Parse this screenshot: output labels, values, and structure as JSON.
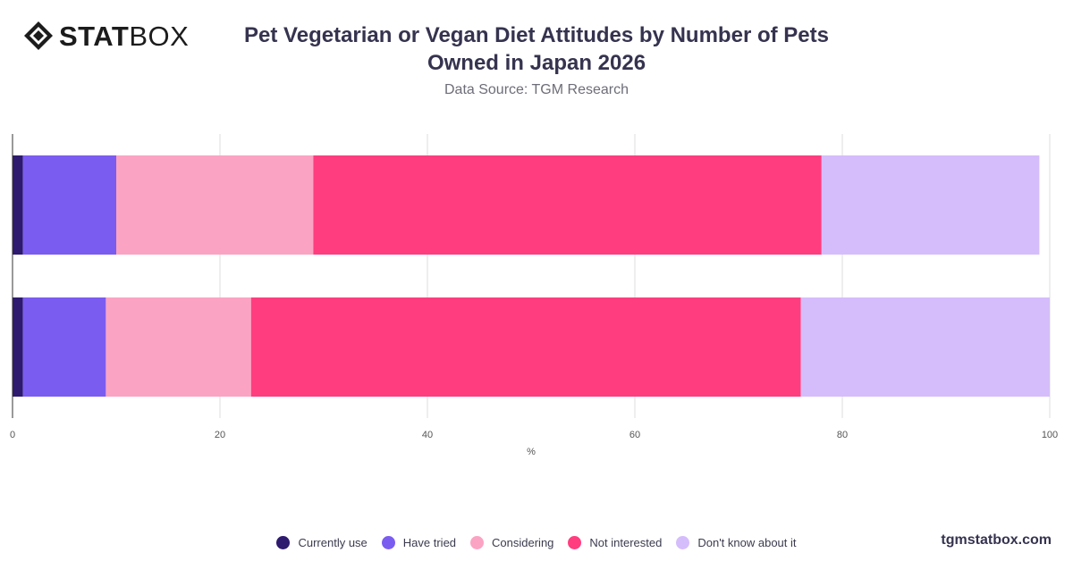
{
  "brand": {
    "logo_bold": "STAT",
    "logo_light": "BOX"
  },
  "header": {
    "title": "Pet Vegetarian or Vegan Diet Attitudes by Number of Pets Owned in Japan 2026",
    "subtitle": "Data Source: TGM Research"
  },
  "footer": {
    "site": "tgmstatbox.com"
  },
  "chart_data": {
    "type": "bar",
    "orientation": "horizontal",
    "stacked": true,
    "title": "Pet Vegetarian or Vegan Diet Attitudes by Number of Pets Owned in Japan 2026",
    "subtitle": "Data Source: TGM Research",
    "xlabel": "%",
    "xlim": [
      0,
      100
    ],
    "xticks": [
      0,
      20,
      40,
      60,
      80,
      100
    ],
    "grid": true,
    "legend_position": "bottom",
    "categories": [
      "",
      ""
    ],
    "series": [
      {
        "name": "Currently use",
        "color": "#2e1a6e",
        "values": [
          1,
          1
        ]
      },
      {
        "name": "Have tried",
        "color": "#7b5cf0",
        "values": [
          9,
          8
        ]
      },
      {
        "name": "Considering",
        "color": "#fba3c3",
        "values": [
          19,
          14
        ]
      },
      {
        "name": "Not interested",
        "color": "#ff3d7f",
        "values": [
          49,
          53
        ]
      },
      {
        "name": "Don't know about it",
        "color": "#d5bdfb",
        "values": [
          21,
          24
        ]
      }
    ]
  }
}
